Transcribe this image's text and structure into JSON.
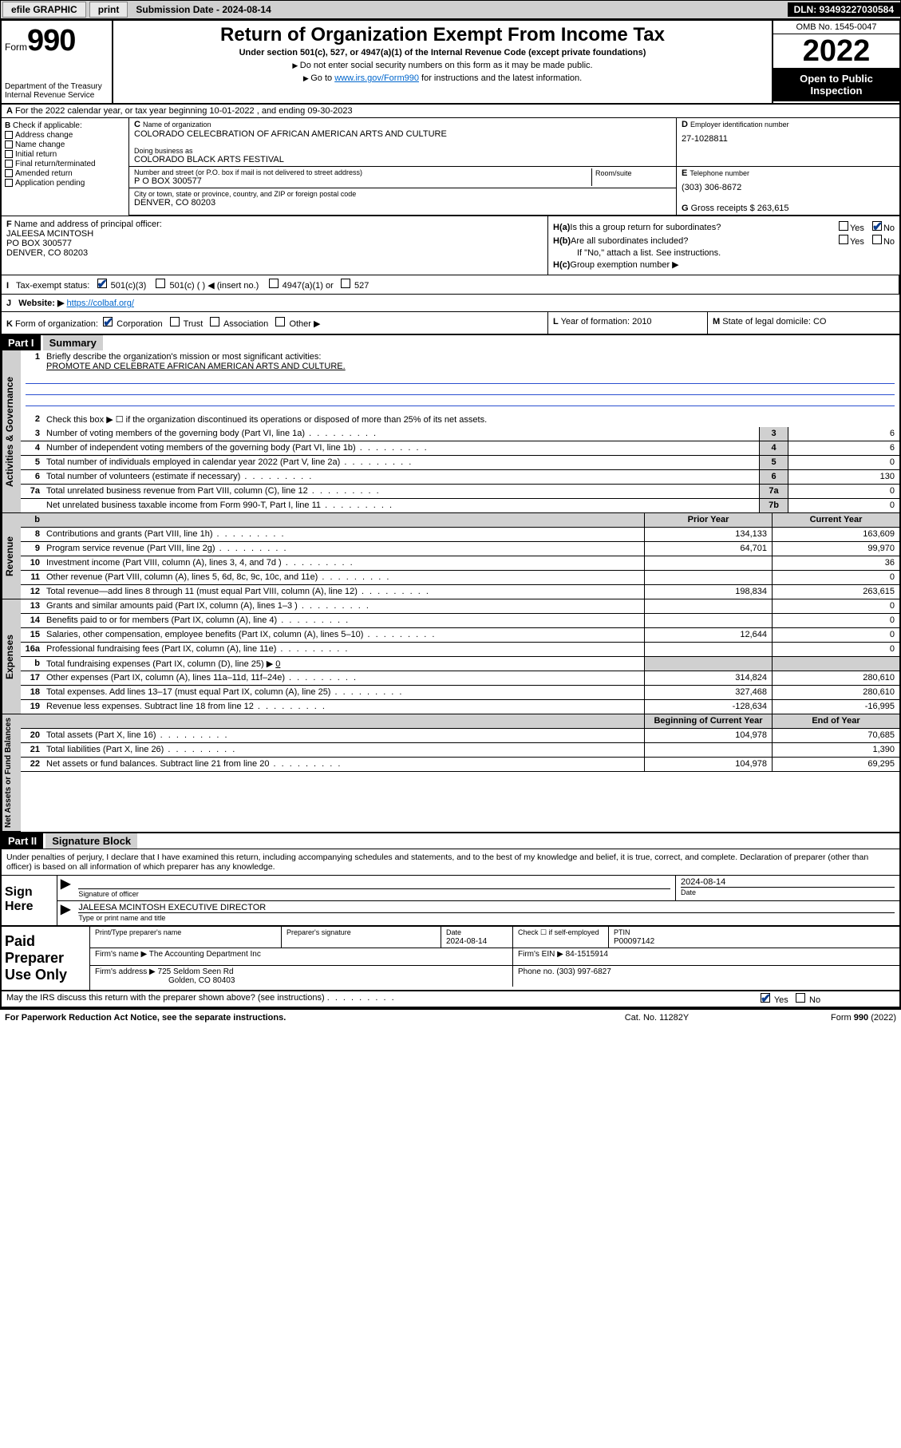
{
  "topbar": {
    "efile": "efile GRAPHIC",
    "print": "print",
    "sub_label": "Submission Date - 2024-08-14",
    "dln": "DLN: 93493227030584"
  },
  "header": {
    "form_word": "Form",
    "form_num": "990",
    "dept": "Department of the Treasury Internal Revenue Service",
    "title": "Return of Organization Exempt From Income Tax",
    "sub1": "Under section 501(c), 527, or 4947(a)(1) of the Internal Revenue Code (except private foundations)",
    "sub2": "Do not enter social security numbers on this form as it may be made public.",
    "sub3_pre": "Go to ",
    "sub3_link": "www.irs.gov/Form990",
    "sub3_post": " for instructions and the latest information.",
    "omb": "OMB No. 1545-0047",
    "year": "2022",
    "open": "Open to Public Inspection"
  },
  "row_a": "For the 2022 calendar year, or tax year beginning 10-01-2022    , and ending 09-30-2023",
  "section_b": {
    "label": "Check if applicable:",
    "items": [
      "Address change",
      "Name change",
      "Initial return",
      "Final return/terminated",
      "Amended return",
      "Application pending"
    ]
  },
  "section_c": {
    "name_label": "Name of organization",
    "name": "COLORADO CELECBRATION OF AFRICAN AMERICAN ARTS AND CULTURE",
    "dba_label": "Doing business as",
    "dba": "COLORADO BLACK ARTS FESTIVAL",
    "street_label": "Number and street (or P.O. box if mail is not delivered to street address)",
    "street": "P O BOX 300577",
    "room_label": "Room/suite",
    "city_label": "City or town, state or province, country, and ZIP or foreign postal code",
    "city": "DENVER, CO  80203"
  },
  "section_d": {
    "ein_label": "Employer identification number",
    "ein": "27-1028811",
    "tel_label": "Telephone number",
    "tel": "(303) 306-8672",
    "gross_label": "Gross receipts $",
    "gross": "263,615"
  },
  "section_f": {
    "label": "Name and address of principal officer:",
    "name": "JALEESA MCINTOSH",
    "addr1": "PO BOX 300577",
    "addr2": "DENVER, CO  80203"
  },
  "section_h": {
    "ha_label": "Is this a group return for subordinates?",
    "hb_label": "Are all subordinates included?",
    "hb_note": "If \"No,\" attach a list. See instructions.",
    "hc_label": "Group exemption number ▶"
  },
  "row_i": {
    "label": "Tax-exempt status:",
    "opt1": "501(c)(3)",
    "opt2": "501(c) (  ) ◀ (insert no.)",
    "opt3": "4947(a)(1) or",
    "opt4": "527"
  },
  "row_j": {
    "label": "Website: ▶",
    "url": "https://colbaf.org/"
  },
  "row_k": {
    "label": "Form of organization:",
    "opts": [
      "Corporation",
      "Trust",
      "Association",
      "Other ▶"
    ]
  },
  "row_l": {
    "label": "Year of formation:",
    "val": "2010"
  },
  "row_m": {
    "label": "State of legal domicile:",
    "val": "CO"
  },
  "part1": {
    "hdr": "Part I",
    "title": "Summary",
    "line1_label": "Briefly describe the organization's mission or most significant activities:",
    "mission": "PROMOTE AND CELEBRATE AFRICAN AMERICAN ARTS AND CULTURE.",
    "line2": "Check this box ▶ ☐  if the organization discontinued its operations or disposed of more than 25% of its net assets.",
    "vtab_gov": "Activities & Governance",
    "vtab_rev": "Revenue",
    "vtab_exp": "Expenses",
    "vtab_net": "Net Assets or Fund Balances",
    "hdr_prior": "Prior Year",
    "hdr_curr": "Current Year",
    "hdr_boy": "Beginning of Current Year",
    "hdr_eoy": "End of Year",
    "lines_single": [
      {
        "n": "3",
        "d": "Number of voting members of the governing body (Part VI, line 1a)",
        "box": "3",
        "v": "6"
      },
      {
        "n": "4",
        "d": "Number of independent voting members of the governing body (Part VI, line 1b)",
        "box": "4",
        "v": "6"
      },
      {
        "n": "5",
        "d": "Total number of individuals employed in calendar year 2022 (Part V, line 2a)",
        "box": "5",
        "v": "0"
      },
      {
        "n": "6",
        "d": "Total number of volunteers (estimate if necessary)",
        "box": "6",
        "v": "130"
      },
      {
        "n": "7a",
        "d": "Total unrelated business revenue from Part VIII, column (C), line 12",
        "box": "7a",
        "v": "0"
      },
      {
        "n": "",
        "d": "Net unrelated business taxable income from Form 990-T, Part I, line 11",
        "box": "7b",
        "v": "0"
      }
    ],
    "lines_rev": [
      {
        "n": "8",
        "d": "Contributions and grants (Part VIII, line 1h)",
        "p": "134,133",
        "c": "163,609"
      },
      {
        "n": "9",
        "d": "Program service revenue (Part VIII, line 2g)",
        "p": "64,701",
        "c": "99,970"
      },
      {
        "n": "10",
        "d": "Investment income (Part VIII, column (A), lines 3, 4, and 7d )",
        "p": "",
        "c": "36"
      },
      {
        "n": "11",
        "d": "Other revenue (Part VIII, column (A), lines 5, 6d, 8c, 9c, 10c, and 11e)",
        "p": "",
        "c": "0"
      },
      {
        "n": "12",
        "d": "Total revenue—add lines 8 through 11 (must equal Part VIII, column (A), line 12)",
        "p": "198,834",
        "c": "263,615"
      }
    ],
    "lines_exp": [
      {
        "n": "13",
        "d": "Grants and similar amounts paid (Part IX, column (A), lines 1–3 )",
        "p": "",
        "c": "0"
      },
      {
        "n": "14",
        "d": "Benefits paid to or for members (Part IX, column (A), line 4)",
        "p": "",
        "c": "0"
      },
      {
        "n": "15",
        "d": "Salaries, other compensation, employee benefits (Part IX, column (A), lines 5–10)",
        "p": "12,644",
        "c": "0"
      },
      {
        "n": "16a",
        "d": "Professional fundraising fees (Part IX, column (A), line 11e)",
        "p": "",
        "c": "0"
      }
    ],
    "line16b": {
      "n": "b",
      "d": "Total fundraising expenses (Part IX, column (D), line 25) ▶",
      "v": "0"
    },
    "lines_exp2": [
      {
        "n": "17",
        "d": "Other expenses (Part IX, column (A), lines 11a–11d, 11f–24e)",
        "p": "314,824",
        "c": "280,610"
      },
      {
        "n": "18",
        "d": "Total expenses. Add lines 13–17 (must equal Part IX, column (A), line 25)",
        "p": "327,468",
        "c": "280,610"
      },
      {
        "n": "19",
        "d": "Revenue less expenses. Subtract line 18 from line 12",
        "p": "-128,634",
        "c": "-16,995"
      }
    ],
    "lines_net": [
      {
        "n": "20",
        "d": "Total assets (Part X, line 16)",
        "p": "104,978",
        "c": "70,685"
      },
      {
        "n": "21",
        "d": "Total liabilities (Part X, line 26)",
        "p": "",
        "c": "1,390"
      },
      {
        "n": "22",
        "d": "Net assets or fund balances. Subtract line 21 from line 20",
        "p": "104,978",
        "c": "69,295"
      }
    ]
  },
  "part2": {
    "hdr": "Part II",
    "title": "Signature Block",
    "penalty": "Under penalties of perjury, I declare that I have examined this return, including accompanying schedules and statements, and to the best of my knowledge and belief, it is true, correct, and complete. Declaration of preparer (other than officer) is based on all information of which preparer has any knowledge.",
    "sign_here": "Sign Here",
    "sig_officer": "Signature of officer",
    "date": "Date",
    "date_val": "2024-08-14",
    "name_title": "JALEESA MCINTOSH  EXECUTIVE DIRECTOR",
    "name_title_label": "Type or print name and title"
  },
  "paid": {
    "label": "Paid Preparer Use Only",
    "print_name": "Print/Type preparer's name",
    "prep_sig": "Preparer's signature",
    "date_label": "Date",
    "date": "2024-08-14",
    "check_label": "Check ☐ if self-employed",
    "ptin_label": "PTIN",
    "ptin": "P00097142",
    "firm_name_label": "Firm's name    ▶",
    "firm_name": "The Accounting Department Inc",
    "firm_ein_label": "Firm's EIN ▶",
    "firm_ein": "84-1515914",
    "firm_addr_label": "Firm's address ▶",
    "firm_addr1": "725 Seldom Seen Rd",
    "firm_addr2": "Golden, CO  80403",
    "phone_label": "Phone no.",
    "phone": "(303) 997-6827"
  },
  "discuss": {
    "text": "May the IRS discuss this return with the preparer shown above? (see instructions)",
    "yes": "Yes",
    "no": "No"
  },
  "footer": {
    "left": "For Paperwork Reduction Act Notice, see the separate instructions.",
    "mid": "Cat. No. 11282Y",
    "right": "Form 990 (2022)"
  },
  "letters": {
    "A": "A",
    "B": "B",
    "C": "C",
    "D": "D",
    "E": "E",
    "F": "F",
    "G": "G",
    "H_a": "H(a)",
    "H_b": "H(b)",
    "H_c": "H(c)",
    "I": "I",
    "J": "J",
    "K": "K",
    "L": "L",
    "M": "M"
  },
  "yn": {
    "yes": "Yes",
    "no": "No"
  }
}
